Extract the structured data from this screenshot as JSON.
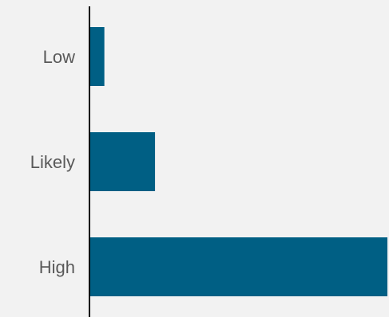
{
  "chart_data": {
    "type": "bar",
    "orientation": "horizontal",
    "categories": [
      "Low",
      "Likely",
      "High"
    ],
    "values": [
      5,
      22,
      100
    ],
    "xlim": [
      0,
      100
    ],
    "grid": false,
    "legend": "none",
    "colors": {
      "bar": "#005f84",
      "axis": "#000000",
      "label": "#595959",
      "background": "#f2f2f2"
    }
  }
}
